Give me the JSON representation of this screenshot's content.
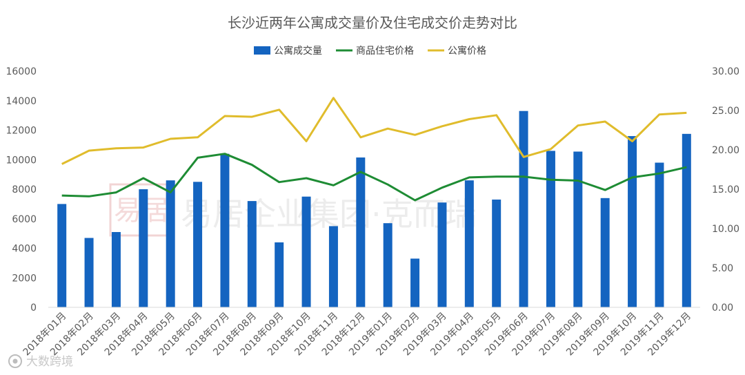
{
  "chart_data": {
    "type": "bar",
    "title": "长沙近两年公寓成交量价及住宅成交价走势对比",
    "categories": [
      "2018年01月",
      "2018年02月",
      "2018年03月",
      "2018年04月",
      "2018年05月",
      "2018年06月",
      "2018年07月",
      "2018年08月",
      "2018年09月",
      "2018年10月",
      "2018年11月",
      "2018年12月",
      "2019年01月",
      "2019年02月",
      "2019年03月",
      "2019年04月",
      "2019年05月",
      "2019年06月",
      "2019年07月",
      "2019年08月",
      "2019年09月",
      "2019年10月",
      "2019年11月",
      "2019年12月"
    ],
    "series": [
      {
        "name": "公寓成交量",
        "type": "bar",
        "axis": "left",
        "color": "#1464c0",
        "values": [
          7000,
          4700,
          5100,
          8000,
          8600,
          8500,
          10400,
          7200,
          4400,
          7500,
          5500,
          10150,
          5700,
          3300,
          7100,
          8600,
          7300,
          13300,
          10600,
          10550,
          7400,
          11600,
          9800,
          11750
        ]
      },
      {
        "name": "商品住宅价格",
        "type": "line",
        "axis": "right",
        "color": "#1e8c34",
        "values": [
          14.2,
          14.1,
          14.6,
          16.4,
          14.6,
          19.0,
          19.5,
          18.1,
          15.9,
          16.4,
          15.5,
          17.2,
          15.6,
          13.6,
          15.2,
          16.5,
          16.6,
          16.6,
          16.2,
          16.1,
          14.9,
          16.5,
          17.0,
          17.8
        ]
      },
      {
        "name": "公寓价格",
        "type": "line",
        "axis": "right",
        "color": "#e0bc2c",
        "values": [
          18.2,
          19.9,
          20.2,
          20.3,
          21.4,
          21.6,
          24.3,
          24.2,
          25.1,
          21.1,
          26.6,
          21.6,
          22.7,
          21.9,
          23.0,
          23.9,
          24.4,
          19.1,
          20.1,
          23.1,
          23.6,
          21.1,
          24.5,
          24.7
        ]
      }
    ],
    "y_left": {
      "min": 0,
      "max": 16000,
      "ticks": [
        "0",
        "2000",
        "4000",
        "6000",
        "8000",
        "10000",
        "12000",
        "14000",
        "16000"
      ]
    },
    "y_right": {
      "min": 0,
      "max": 30,
      "ticks": [
        "0.00",
        "5.00",
        "10.00",
        "15.00",
        "20.00",
        "25.00",
        "30.00"
      ]
    },
    "grid": false,
    "legend_position": "top-center"
  },
  "watermark": {
    "text": "易居企业集团·克而瑞",
    "logo_text": "易居"
  },
  "source_watermark": {
    "text": "大数跨境",
    "icon": "camera-icon"
  }
}
